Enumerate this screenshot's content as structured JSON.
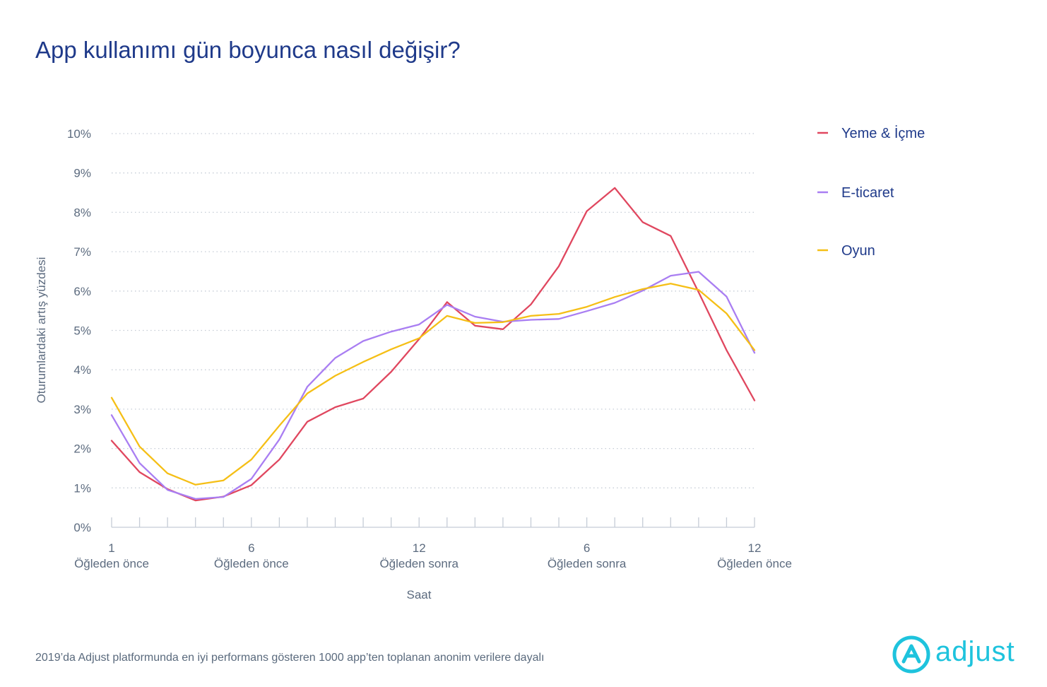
{
  "title": "App kullanımı gün boyunca nasıl değişir?",
  "footer": "2019’da Adjust platformunda en iyi performans gösteren 1000 app’ten toplanan anonim verilere dayalı",
  "logo": {
    "text": "adjust",
    "icon": "adjust-logo-icon",
    "color": "#1ec3dd"
  },
  "chart_data": {
    "type": "line",
    "xlabel": "Saat",
    "ylabel": "Oturumlardaki artış yüzdesi",
    "ylim": [
      0,
      10
    ],
    "yticks": [
      "0%",
      "1%",
      "2%",
      "3%",
      "4%",
      "5%",
      "6%",
      "7%",
      "8%",
      "9%",
      "10%"
    ],
    "x": [
      1,
      2,
      3,
      4,
      5,
      6,
      7,
      8,
      9,
      10,
      11,
      12,
      13,
      14,
      15,
      16,
      17,
      18,
      19,
      20,
      21,
      22,
      23,
      24
    ],
    "xticks": [
      {
        "x": 1,
        "number": "1",
        "period": "Öğleden önce"
      },
      {
        "x": 6,
        "number": "6",
        "period": "Öğleden önce"
      },
      {
        "x": 12,
        "number": "12",
        "period": "Öğleden sonra"
      },
      {
        "x": 18,
        "number": "6",
        "period": "Öğleden sonra"
      },
      {
        "x": 24,
        "number": "12",
        "period": "Öğleden önce"
      }
    ],
    "grid": "horizontal dotted",
    "legend_position": "right",
    "series": [
      {
        "name": "Yeme & İçme",
        "color": "#e0475f",
        "values": [
          2.2,
          1.4,
          0.97,
          0.68,
          0.78,
          1.07,
          1.72,
          2.68,
          3.05,
          3.27,
          3.95,
          4.78,
          5.72,
          5.12,
          5.03,
          5.66,
          6.63,
          8.03,
          8.62,
          7.75,
          7.4,
          5.97,
          4.5,
          3.22
        ]
      },
      {
        "name": "E-ticaret",
        "color": "#a97ef2",
        "values": [
          2.85,
          1.63,
          0.95,
          0.72,
          0.77,
          1.23,
          2.23,
          3.57,
          4.3,
          4.73,
          4.97,
          5.15,
          5.65,
          5.35,
          5.22,
          5.27,
          5.29,
          5.49,
          5.7,
          6.01,
          6.39,
          6.49,
          5.86,
          4.43
        ]
      },
      {
        "name": "Oyun",
        "color": "#f5bf16",
        "values": [
          3.29,
          2.05,
          1.37,
          1.08,
          1.19,
          1.72,
          2.58,
          3.4,
          3.85,
          4.2,
          4.52,
          4.8,
          5.37,
          5.19,
          5.21,
          5.37,
          5.42,
          5.6,
          5.85,
          6.05,
          6.19,
          6.03,
          5.43,
          4.5
        ]
      }
    ]
  }
}
